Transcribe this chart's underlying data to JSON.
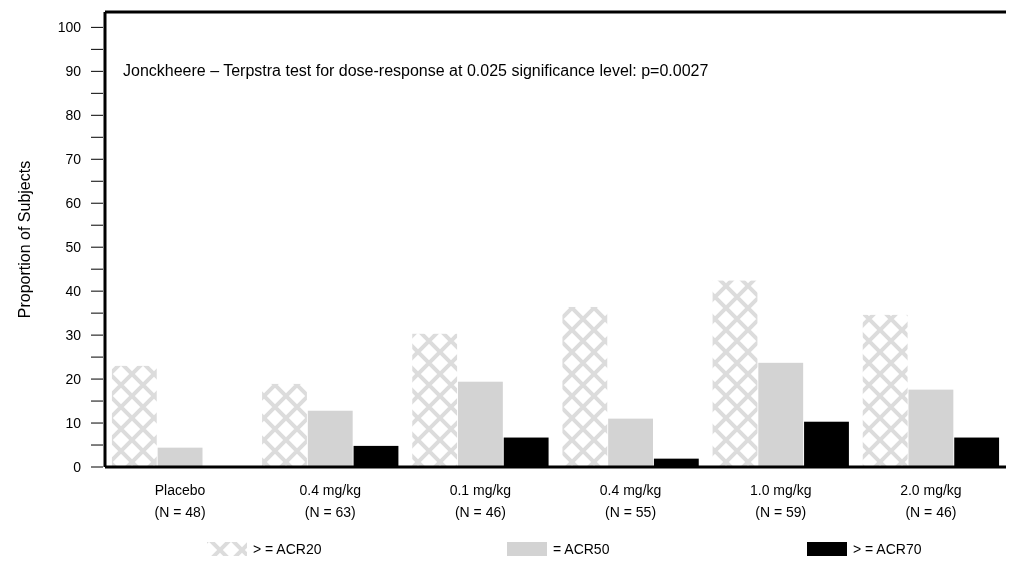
{
  "chart_data": {
    "type": "bar",
    "ylabel": "Proportion of Subjects",
    "categories": [
      "Placebo\n(N = 48)",
      "0.4 mg/kg\n(N = 63)",
      "0.1 mg/kg\n(N = 46)",
      "0.4 mg/kg\n(N = 55)",
      "1.0 mg/kg\n(N = 59)",
      "2.0 mg/kg\n(N = 46)"
    ],
    "series": [
      {
        "name": "> = ACR20",
        "color": "#dcdcdc",
        "values": [
          23.0,
          18.9,
          30.3,
          36.4,
          42.4,
          34.6
        ]
      },
      {
        "name": "= ACR50",
        "color": "#d3d3d3",
        "values": [
          4.4,
          12.8,
          19.4,
          11.0,
          23.7,
          17.6
        ]
      },
      {
        "name": "> = ACR70",
        "color": "#000000",
        "values": [
          0,
          4.8,
          6.7,
          1.9,
          10.3,
          6.7
        ]
      }
    ],
    "ylim": [
      0,
      103.5
    ],
    "yticks": [
      0,
      {
        "value": 5,
        "label": null
      },
      10,
      {
        "value": 15,
        "label": null
      },
      20,
      {
        "value": 25,
        "label": null
      },
      30,
      {
        "value": 35,
        "label": null
      },
      40,
      {
        "value": 45,
        "label": null
      },
      50,
      {
        "value": 55,
        "label": null
      },
      60,
      {
        "value": 65,
        "label": null
      },
      70,
      {
        "value": 75,
        "label": null
      },
      80,
      {
        "value": 85,
        "label": null
      },
      90,
      {
        "value": 95,
        "label": null
      },
      100
    ],
    "annotations": [
      "Jonckheere – Terpstra test for dose-response at 0.025 significance level: p=0.0027"
    ],
    "legend": "bottom",
    "grid": false
  }
}
